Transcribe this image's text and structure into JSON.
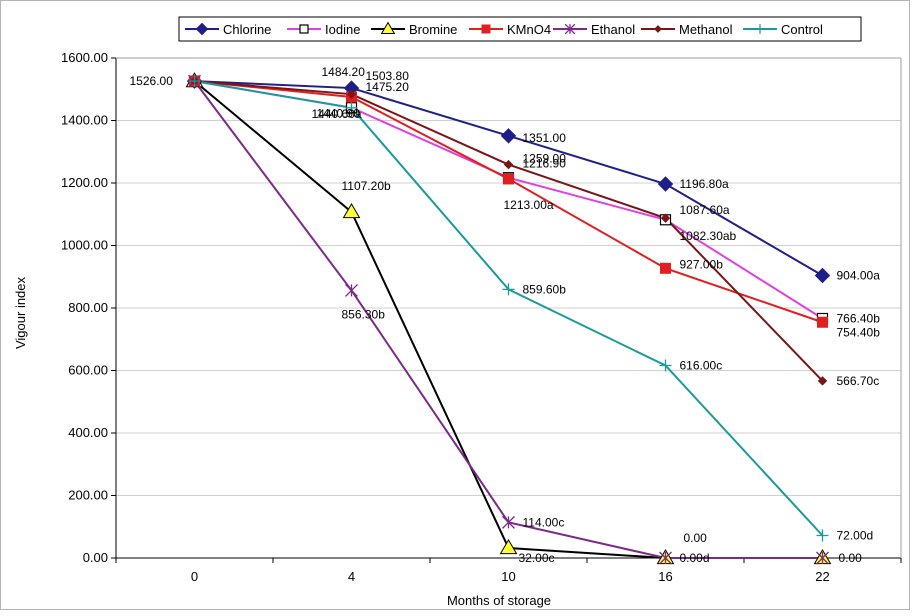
{
  "chart_data": {
    "type": "line",
    "title": "",
    "xlabel": "Months of storage",
    "ylabel": "Vigour index",
    "categories": [
      "0",
      "4",
      "10",
      "16",
      "22"
    ],
    "ylim": [
      0,
      1600
    ],
    "yticks": [
      "0.00",
      "200.00",
      "400.00",
      "600.00",
      "800.00",
      "1000.00",
      "1200.00",
      "1400.00",
      "1600.00"
    ],
    "legend_position": "top",
    "grid": "horizontal",
    "series": [
      {
        "name": "Chlorine",
        "color": "#1f1f8a",
        "marker": "diamond",
        "values": [
          1526,
          1503.8,
          1351,
          1196.8,
          904
        ],
        "labels": [
          "",
          "1503.80",
          "1351.00",
          "1196.80a",
          "904.00a"
        ]
      },
      {
        "name": "Iodine",
        "color": "#e040e0",
        "marker": "square-open",
        "values": [
          1526,
          1440.9,
          1216.9,
          1082.3,
          766.4
        ],
        "labels": [
          "",
          "1440.90",
          "1216.90",
          "1082.30ab",
          "766.40b"
        ]
      },
      {
        "name": "Bromine",
        "color": "#000000",
        "marker": "triangle",
        "values": [
          1526,
          1107.2,
          32,
          0,
          0
        ],
        "labels": [
          "1526.00",
          "1107.20b",
          "32.00c",
          "0.00",
          ""
        ]
      },
      {
        "name": "KMnO4",
        "color": "#e02020",
        "marker": "square",
        "values": [
          1526,
          1475.2,
          1213,
          927,
          754.4
        ],
        "labels": [
          "",
          "1475.20",
          "1213.00a",
          "927.00b",
          "754.40b"
        ]
      },
      {
        "name": "Ethanol",
        "color": "#7a2a8a",
        "marker": "star",
        "values": [
          1526,
          856.3,
          114,
          0,
          0
        ],
        "labels": [
          "",
          "856.30b",
          "114.00c",
          "0.00d",
          "0.00"
        ]
      },
      {
        "name": "Methanol",
        "color": "#7a1515",
        "marker": "diamond-small",
        "values": [
          1526,
          1484.2,
          1259,
          1087.6,
          566.7
        ],
        "labels": [
          "",
          "1484.20",
          "1259.00",
          "1087.60a",
          "566.70c"
        ]
      },
      {
        "name": "Control",
        "color": "#1a9a9a",
        "marker": "plus",
        "values": [
          1526,
          1440.6,
          859.6,
          616,
          72
        ],
        "labels": [
          "",
          "1440.60a",
          "859.60b",
          "616.00c",
          "72.00d"
        ]
      }
    ]
  }
}
